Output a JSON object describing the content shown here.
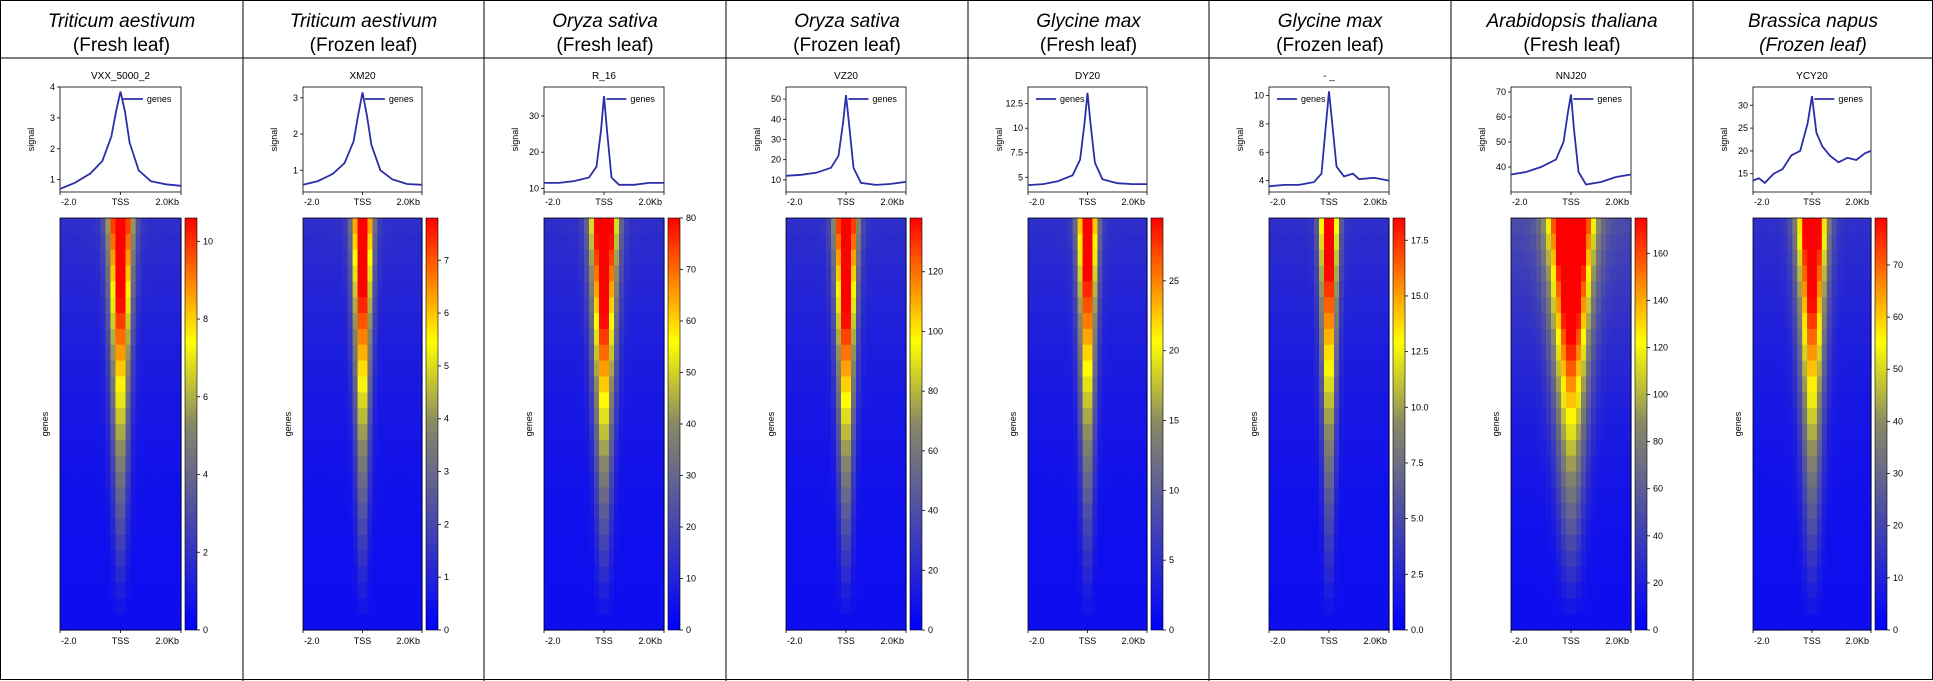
{
  "axis_labels": {
    "signal": "signal",
    "genes": "genes",
    "legend": "genes"
  },
  "x_ticks": [
    "-2.0",
    "TSS",
    "2.0Kb"
  ],
  "chart_data": [
    {
      "type": "heatmap",
      "species": "Triticum aestivum",
      "condition": "(Fresh leaf)",
      "sample": "VXX_5000_2",
      "profile": {
        "x": [
          -2.0,
          -1.5,
          -1.0,
          -0.6,
          -0.3,
          -0.15,
          0.0,
          0.15,
          0.3,
          0.6,
          1.0,
          1.5,
          2.0
        ],
        "y": [
          0.7,
          0.9,
          1.2,
          1.6,
          2.4,
          3.2,
          3.85,
          3.2,
          2.2,
          1.3,
          0.95,
          0.85,
          0.8
        ]
      },
      "profile_ylim": [
        0.6,
        4
      ],
      "profile_yticks": [
        1,
        2,
        3,
        4
      ],
      "colorbar": {
        "min": 0,
        "max": 10.6,
        "ticks": [
          0,
          2,
          4,
          6,
          8,
          10
        ]
      },
      "heat": {
        "width": 0.22,
        "decay": 0.75,
        "top": 1.0
      }
    },
    {
      "type": "heatmap",
      "species": "Triticum aestivum",
      "condition": "(Frozen leaf)",
      "sample": "XM20",
      "profile": {
        "x": [
          -2.0,
          -1.5,
          -1.0,
          -0.6,
          -0.3,
          -0.15,
          0.0,
          0.15,
          0.3,
          0.6,
          1.0,
          1.5,
          2.0
        ],
        "y": [
          0.6,
          0.7,
          0.9,
          1.2,
          1.8,
          2.5,
          3.15,
          2.5,
          1.7,
          1.0,
          0.75,
          0.62,
          0.6
        ]
      },
      "profile_ylim": [
        0.4,
        3.3
      ],
      "profile_yticks": [
        1,
        2,
        3
      ],
      "colorbar": {
        "min": 0,
        "max": 7.8,
        "ticks": [
          0,
          1,
          2,
          3,
          4,
          5,
          6,
          7
        ]
      },
      "heat": {
        "width": 0.18,
        "decay": 0.8,
        "top": 1.0
      }
    },
    {
      "type": "heatmap",
      "species": "Oryza sativa",
      "condition": "(Fresh leaf)",
      "sample": "R_16",
      "profile": {
        "x": [
          -2.0,
          -1.5,
          -1.0,
          -0.5,
          -0.25,
          -0.1,
          0.0,
          0.1,
          0.25,
          0.5,
          1.0,
          1.5,
          2.0
        ],
        "y": [
          11.5,
          11.5,
          12,
          13,
          16,
          26,
          35.5,
          26,
          13,
          11,
          11,
          11.5,
          11.5
        ]
      },
      "profile_ylim": [
        9,
        38
      ],
      "profile_yticks": [
        10,
        20,
        30
      ],
      "colorbar": {
        "min": 0,
        "max": 80,
        "ticks": [
          0,
          10,
          20,
          30,
          40,
          50,
          60,
          70,
          80
        ]
      },
      "heat": {
        "width": 0.25,
        "decay": 0.55,
        "top": 1.0
      }
    },
    {
      "type": "heatmap",
      "species": "Oryza sativa",
      "condition": "(Frozen leaf)",
      "sample": "VZ20",
      "profile": {
        "x": [
          -2.0,
          -1.5,
          -1.0,
          -0.5,
          -0.25,
          -0.1,
          0.0,
          0.1,
          0.25,
          0.5,
          1.0,
          1.5,
          2.0
        ],
        "y": [
          12,
          12.5,
          13.5,
          16,
          22,
          38,
          52,
          38,
          16,
          8.5,
          7.5,
          8,
          9
        ]
      },
      "profile_ylim": [
        4,
        56
      ],
      "profile_yticks": [
        10,
        20,
        30,
        40,
        50
      ],
      "colorbar": {
        "min": 0,
        "max": 138,
        "ticks": [
          0,
          20,
          40,
          60,
          80,
          100,
          120
        ]
      },
      "heat": {
        "width": 0.2,
        "decay": 0.5,
        "top": 1.0
      }
    },
    {
      "type": "heatmap",
      "species": "Glycine max",
      "condition": "(Fresh leaf)",
      "sample": "DY20",
      "profile": {
        "x": [
          -2.0,
          -1.5,
          -1.0,
          -0.5,
          -0.25,
          -0.1,
          0.0,
          0.1,
          0.25,
          0.5,
          1.0,
          1.5,
          2.0
        ],
        "y": [
          4.2,
          4.3,
          4.6,
          5.2,
          6.8,
          10.5,
          13.6,
          10.5,
          6.5,
          4.8,
          4.4,
          4.3,
          4.3
        ]
      },
      "profile_ylim": [
        3.5,
        14.2
      ],
      "profile_yticks": [
        5.0,
        7.5,
        10.0,
        12.5
      ],
      "colorbar": {
        "min": 0,
        "max": 29.5,
        "ticks": [
          0,
          5,
          10,
          15,
          20,
          25
        ]
      },
      "heat": {
        "width": 0.18,
        "decay": 0.6,
        "top": 0.85
      }
    },
    {
      "type": "heatmap",
      "species": "Glycine max",
      "condition": "(Frozen leaf)",
      "sample": "- _",
      "profile": {
        "x": [
          -2.0,
          -1.5,
          -1.0,
          -0.5,
          -0.25,
          -0.1,
          0.0,
          0.1,
          0.25,
          0.5,
          0.8,
          1.0,
          1.5,
          2.0
        ],
        "y": [
          3.6,
          3.7,
          3.7,
          3.9,
          4.5,
          8.0,
          10.3,
          8.2,
          5.0,
          4.3,
          4.5,
          4.1,
          4.2,
          4.0
        ]
      },
      "profile_ylim": [
        3.2,
        10.6
      ],
      "profile_yticks": [
        4,
        6,
        8,
        10
      ],
      "colorbar": {
        "min": 0,
        "max": 18.5,
        "ticks": [
          0.0,
          2.5,
          5.0,
          7.5,
          10.0,
          12.5,
          15.0,
          17.5
        ]
      },
      "heat": {
        "width": 0.16,
        "decay": 0.35,
        "top": 0.75
      }
    },
    {
      "type": "heatmap",
      "species": "Arabidopsis thaliana",
      "condition": "(Fresh leaf)",
      "sample": "NNJ20",
      "profile": {
        "x": [
          -2.0,
          -1.5,
          -1.0,
          -0.5,
          -0.25,
          -0.1,
          0.0,
          0.1,
          0.25,
          0.5,
          1.0,
          1.5,
          2.0
        ],
        "y": [
          37,
          38,
          40,
          43,
          50,
          62,
          69,
          55,
          38,
          33,
          34,
          36,
          37
        ]
      },
      "profile_ylim": [
        30,
        72
      ],
      "profile_yticks": [
        40,
        50,
        60,
        70
      ],
      "colorbar": {
        "min": 0,
        "max": 175,
        "ticks": [
          0,
          20,
          40,
          60,
          80,
          100,
          120,
          140,
          160
        ]
      },
      "heat": {
        "width": 0.45,
        "decay": 0.5,
        "top": 1.0
      }
    },
    {
      "type": "heatmap",
      "species": "Brassica napus",
      "condition": "(Frozen leaf)",
      "sample": "YCY20",
      "profile": {
        "x": [
          -2.0,
          -1.8,
          -1.6,
          -1.3,
          -1.0,
          -0.7,
          -0.4,
          -0.15,
          0.0,
          0.15,
          0.35,
          0.6,
          0.9,
          1.2,
          1.5,
          1.8,
          2.0
        ],
        "y": [
          13.5,
          14,
          13,
          15,
          16,
          19,
          20,
          26,
          32,
          24,
          21,
          19,
          17.5,
          18.5,
          18,
          19.5,
          20
        ]
      },
      "profile_ylim": [
        11,
        34
      ],
      "profile_yticks": [
        15,
        20,
        25,
        30
      ],
      "colorbar": {
        "min": 0,
        "max": 79,
        "ticks": [
          0,
          10,
          20,
          30,
          40,
          50,
          60,
          70
        ]
      },
      "heat": {
        "width": 0.3,
        "decay": 0.55,
        "top": 0.9
      }
    }
  ]
}
